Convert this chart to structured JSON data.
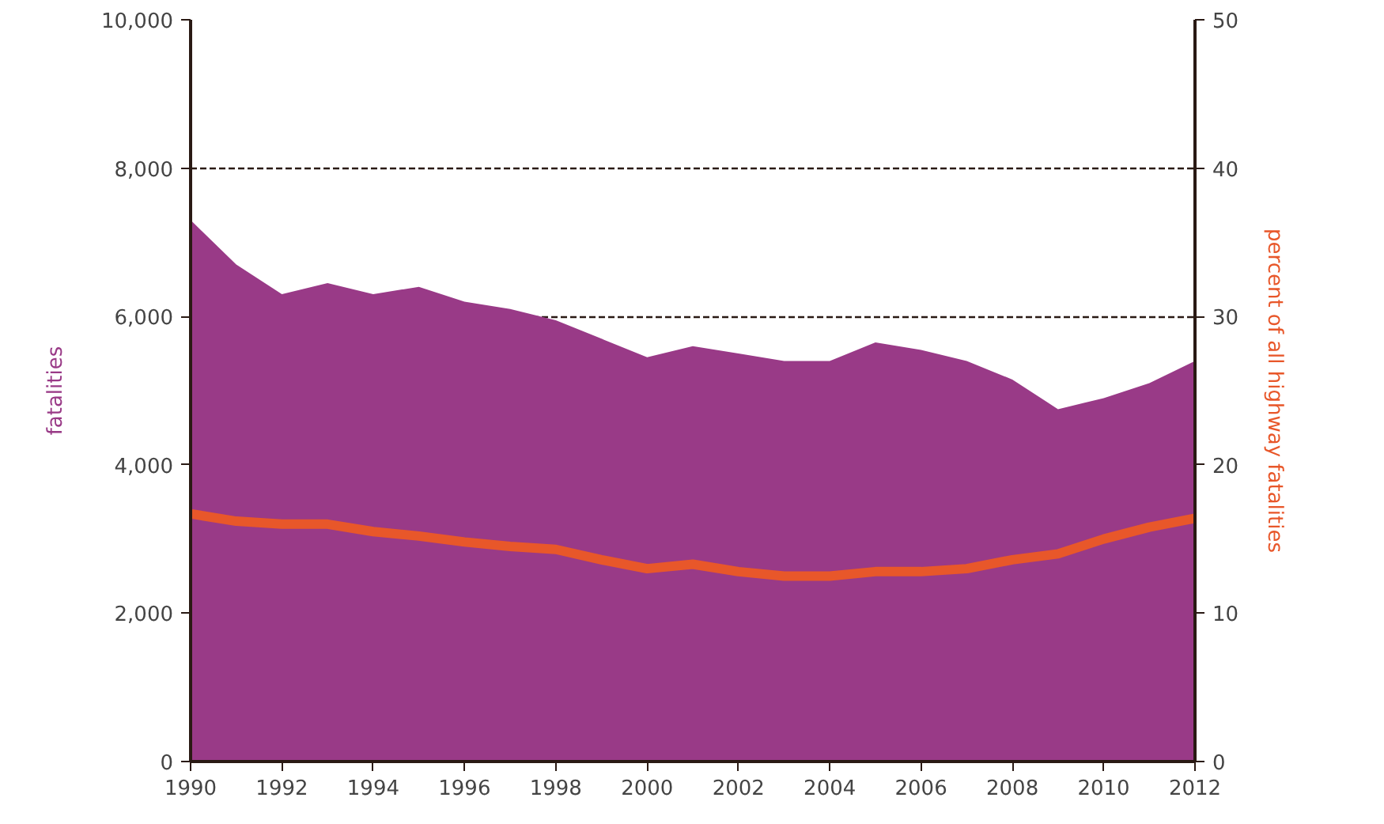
{
  "chart_data": {
    "type": "area",
    "x": [
      1990,
      1991,
      1992,
      1993,
      1994,
      1995,
      1996,
      1997,
      1998,
      1999,
      2000,
      2001,
      2002,
      2003,
      2004,
      2005,
      2006,
      2007,
      2008,
      2009,
      2010,
      2011,
      2012
    ],
    "series": [
      {
        "name": "fatalities",
        "color": "#993a87",
        "values": [
          7300,
          6700,
          6300,
          6450,
          6300,
          6400,
          6200,
          6100,
          5950,
          5700,
          5450,
          5600,
          5500,
          5400,
          5400,
          5650,
          5550,
          5400,
          5150,
          4750,
          4900,
          5100,
          5400
        ]
      },
      {
        "name": "percent of all highway fatalities",
        "type": "line",
        "axis": "y2",
        "color": "#e8572a",
        "values": [
          16.7,
          16.2,
          16.0,
          16.0,
          15.5,
          15.2,
          14.8,
          14.5,
          14.3,
          13.6,
          13.0,
          13.3,
          12.8,
          12.5,
          12.5,
          12.8,
          12.8,
          13.0,
          13.6,
          14.0,
          15.0,
          15.8,
          16.4
        ]
      }
    ],
    "xlim": [
      1990,
      2012
    ],
    "xticks": [
      1990,
      1992,
      1994,
      1996,
      1998,
      2000,
      2002,
      2004,
      2006,
      2008,
      2010,
      2012
    ],
    "ylim": [
      0,
      10000
    ],
    "yticks": [
      0,
      {
        "value": 2000,
        "label": "2,000"
      },
      {
        "value": 4000,
        "label": "4,000"
      },
      {
        "value": 6000,
        "label": "6,000"
      },
      {
        "value": 8000,
        "label": "8,000"
      },
      {
        "value": 10000,
        "label": "10,000"
      }
    ],
    "y2lim": [
      0,
      50
    ],
    "y2ticks": [
      0,
      10,
      20,
      30,
      40,
      50
    ],
    "grid": "y",
    "line_style": "solid"
  }
}
